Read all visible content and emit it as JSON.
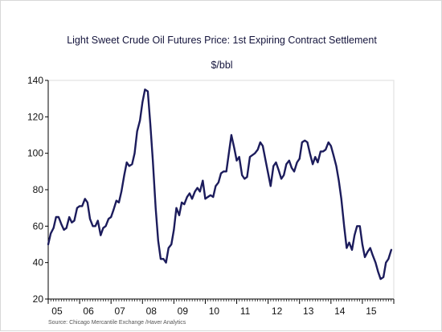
{
  "chart_data": {
    "type": "line",
    "title": "Light Sweet Crude Oil Futures Price: 1st Expiring Contract Settlement",
    "subtitle": "$/bbl",
    "source": "Source:  Chicago Mercantile Exchange /Haver Analytics",
    "xlabel": "",
    "ylabel": "",
    "ylim": [
      20,
      140
    ],
    "yticks": [
      20,
      40,
      60,
      80,
      100,
      120,
      140
    ],
    "xlim": [
      2005.0,
      2016.0
    ],
    "xticks": [
      {
        "label": "05",
        "x": 2005.0
      },
      {
        "label": "06",
        "x": 2006.0
      },
      {
        "label": "07",
        "x": 2007.0
      },
      {
        "label": "08",
        "x": 2008.0
      },
      {
        "label": "09",
        "x": 2009.0
      },
      {
        "label": "10",
        "x": 2010.0
      },
      {
        "label": "11",
        "x": 2011.0
      },
      {
        "label": "12",
        "x": 2012.0
      },
      {
        "label": "13",
        "x": 2013.0
      },
      {
        "label": "14",
        "x": 2014.0
      },
      {
        "label": "15",
        "x": 2015.0
      }
    ],
    "grid": false,
    "line_color": "#1c1c5c",
    "series": [
      {
        "x": [
          2005.0,
          2005.08,
          2005.17,
          2005.25,
          2005.33,
          2005.42,
          2005.5,
          2005.58,
          2005.67,
          2005.75,
          2005.83,
          2005.92,
          2006.0,
          2006.08,
          2006.17,
          2006.25,
          2006.33,
          2006.42,
          2006.5,
          2006.58,
          2006.67,
          2006.75,
          2006.83,
          2006.92,
          2007.0,
          2007.08,
          2007.17,
          2007.25,
          2007.33,
          2007.42,
          2007.5,
          2007.58,
          2007.67,
          2007.75,
          2007.83,
          2007.92,
          2008.0,
          2008.08,
          2008.17,
          2008.25,
          2008.33,
          2008.42,
          2008.5,
          2008.58,
          2008.67,
          2008.75,
          2008.83,
          2008.92,
          2009.0,
          2009.08,
          2009.17,
          2009.25,
          2009.33,
          2009.42,
          2009.5,
          2009.58,
          2009.67,
          2009.75,
          2009.83,
          2009.92,
          2010.0,
          2010.08,
          2010.17,
          2010.25,
          2010.33,
          2010.42,
          2010.5,
          2010.58,
          2010.67,
          2010.75,
          2010.83,
          2010.92,
          2011.0,
          2011.08,
          2011.17,
          2011.25,
          2011.33,
          2011.42,
          2011.5,
          2011.58,
          2011.67,
          2011.75,
          2011.83,
          2011.92,
          2012.0,
          2012.08,
          2012.17,
          2012.25,
          2012.33,
          2012.42,
          2012.5,
          2012.58,
          2012.67,
          2012.75,
          2012.83,
          2012.92,
          2013.0,
          2013.08,
          2013.17,
          2013.25,
          2013.33,
          2013.42,
          2013.5,
          2013.58,
          2013.67,
          2013.75,
          2013.83,
          2013.92,
          2014.0,
          2014.08,
          2014.17,
          2014.25,
          2014.33,
          2014.42,
          2014.5,
          2014.58,
          2014.67,
          2014.75,
          2014.83,
          2014.92,
          2015.0,
          2015.08,
          2015.17,
          2015.25,
          2015.33,
          2015.42,
          2015.5,
          2015.58,
          2015.67,
          2015.75,
          2015.83,
          2015.92
        ],
        "values": [
          50,
          56,
          59,
          65,
          65,
          61,
          58,
          59,
          65,
          62,
          63,
          70,
          71,
          71,
          75,
          73,
          64,
          60,
          60,
          63,
          55,
          59,
          60,
          64,
          65,
          69,
          74,
          73,
          79,
          88,
          95,
          93,
          94,
          100,
          112,
          118,
          128,
          135,
          134,
          116,
          96,
          70,
          52,
          42,
          42,
          40,
          48,
          50,
          58,
          70,
          66,
          73,
          72,
          76,
          78,
          75,
          79,
          81,
          79,
          85,
          75,
          76,
          77,
          76,
          82,
          84,
          89,
          90,
          90,
          100,
          110,
          103,
          96,
          98,
          88,
          86,
          87,
          98,
          99,
          100,
          102,
          106,
          104,
          96,
          89,
          82,
          93,
          95,
          91,
          86,
          88,
          94,
          96,
          92,
          90,
          95,
          97,
          106,
          107,
          106,
          100,
          94,
          98,
          95,
          101,
          101,
          102,
          106,
          104,
          99,
          93,
          85,
          75,
          60,
          48,
          51,
          47,
          55,
          60,
          60,
          50,
          43,
          46,
          48,
          44,
          40,
          35,
          31,
          32,
          40,
          42,
          47
        ]
      }
    ]
  }
}
